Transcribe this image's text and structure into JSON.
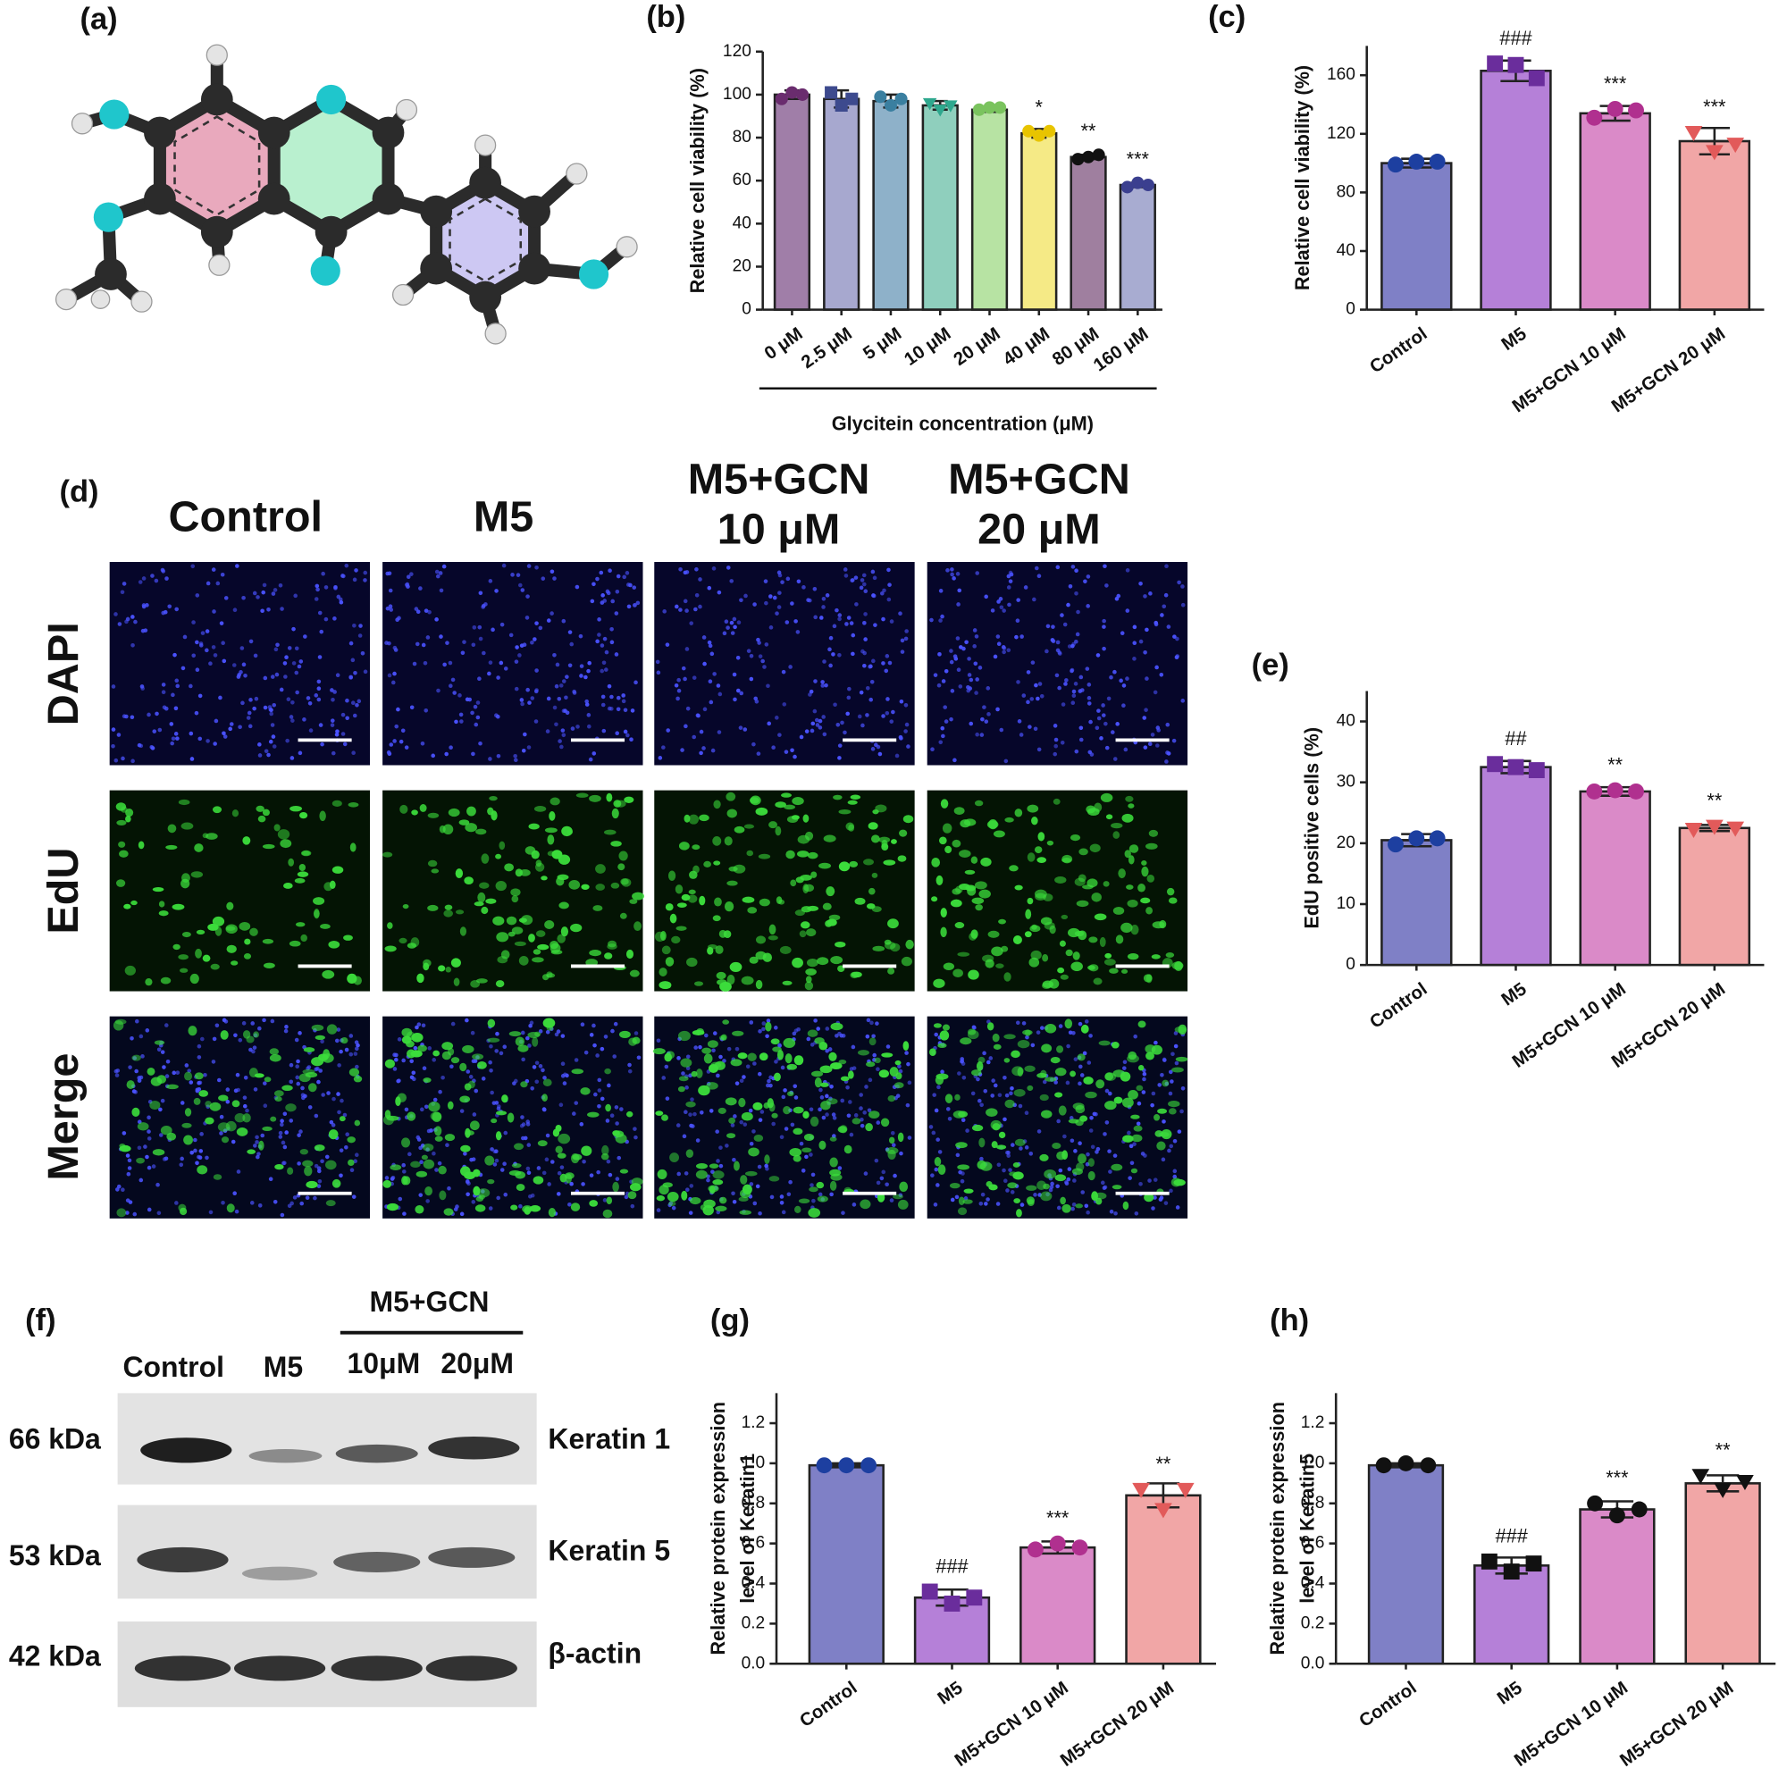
{
  "panel_labels": [
    "(a)",
    "(b)",
    "(c)",
    "(d)",
    "(e)",
    "(f)",
    "(g)",
    "(h)"
  ],
  "chart_data": [
    {
      "type": "bar",
      "ylabel": "Relative cell viability (%)",
      "xlabel": "Glycitein concentration (μM)",
      "categories": [
        "0 μM",
        "2.5 μM",
        "5 μM",
        "10 μM",
        "20 μM",
        "40 μM",
        "80 μM",
        "160 μM"
      ],
      "values": [
        100,
        98,
        97,
        95,
        93,
        82,
        71,
        58
      ],
      "errors": [
        2,
        4,
        3,
        2,
        1,
        2,
        1,
        1
      ],
      "points": [
        [
          98,
          101,
          100
        ],
        [
          101,
          95,
          98
        ],
        [
          99,
          95,
          98
        ],
        [
          96,
          93,
          95
        ],
        [
          93,
          94,
          94
        ],
        [
          83,
          81,
          83
        ],
        [
          70,
          71,
          72
        ],
        [
          57,
          59,
          58
        ]
      ],
      "annotations": [
        null,
        null,
        null,
        null,
        null,
        "*",
        "**",
        "***"
      ],
      "colors": [
        "#a07ea8",
        "#a7a8cf",
        "#8eb1c9",
        "#8fcfbd",
        "#b7e3a3",
        "#f5ea86",
        "#9f7f9f",
        "#a8acd1"
      ],
      "point_colors": [
        "#6a2c6e",
        "#3d4a8e",
        "#3a7fa0",
        "#2ea88e",
        "#7ac35e",
        "#e8c400",
        "#111111",
        "#3b3f8f"
      ],
      "markers": [
        "circle",
        "square",
        "circle",
        "triangle",
        "circle",
        "circle",
        "circle",
        "circle"
      ],
      "ylim": [
        0,
        120
      ],
      "yticks": [
        0,
        20,
        40,
        60,
        80,
        100,
        120
      ]
    },
    {
      "type": "bar",
      "ylabel": "Relative cell viability (%)",
      "categories": [
        "Control",
        "M5",
        "M5+GCN 10 μM",
        "M5+GCN 20 μM"
      ],
      "values": [
        100,
        163,
        134,
        115
      ],
      "errors": [
        3,
        7,
        5,
        9
      ],
      "points": [
        [
          99,
          101,
          101
        ],
        [
          168,
          167,
          158
        ],
        [
          131,
          137,
          136
        ],
        [
          121,
          108,
          113
        ]
      ],
      "annotations": [
        null,
        "###",
        "***",
        "***"
      ],
      "colors": [
        "#7f80c6",
        "#b580d8",
        "#da8ac8",
        "#f1a6a6"
      ],
      "point_colors": [
        "#1d3fa0",
        "#6a2d9c",
        "#b0308f",
        "#e25a5a"
      ],
      "markers": [
        "circle",
        "square",
        "circle",
        "triangle"
      ],
      "ylim": [
        0,
        180
      ],
      "yticks": [
        0,
        40,
        80,
        120,
        160
      ]
    },
    {
      "type": "bar",
      "ylabel": "EdU positive cells (%)",
      "categories": [
        "Control",
        "M5",
        "M5+GCN 10 μM",
        "M5+GCN 20 μM"
      ],
      "values": [
        20.5,
        32.5,
        28.5,
        22.5
      ],
      "errors": [
        1,
        1,
        0.7,
        0.5
      ],
      "points": [
        [
          19.8,
          20.8,
          20.8
        ],
        [
          33,
          32.5,
          32
        ],
        [
          28.5,
          28.7,
          28.5
        ],
        [
          22.3,
          22.8,
          22.5
        ]
      ],
      "annotations": [
        null,
        "##",
        "**",
        "**"
      ],
      "colors": [
        "#7f80c6",
        "#b580d8",
        "#da8ac8",
        "#f1a6a6"
      ],
      "point_colors": [
        "#1d3fa0",
        "#6a2d9c",
        "#b0308f",
        "#e25a5a"
      ],
      "markers": [
        "circle",
        "square",
        "circle",
        "triangle"
      ],
      "ylim": [
        0,
        45
      ],
      "yticks": [
        0,
        10,
        20,
        30,
        40
      ]
    },
    {
      "type": "bar",
      "ylabel_lines": [
        "Relative protein expression",
        "level of Keratin1"
      ],
      "categories": [
        "Control",
        "M5",
        "M5+GCN 10 μM",
        "M5+GCN 20 μM"
      ],
      "values": [
        0.99,
        0.33,
        0.58,
        0.84
      ],
      "errors": [
        0.01,
        0.04,
        0.03,
        0.06
      ],
      "points": [
        [
          0.99,
          0.99,
          0.99
        ],
        [
          0.36,
          0.3,
          0.33
        ],
        [
          0.57,
          0.6,
          0.58
        ],
        [
          0.87,
          0.77,
          0.87
        ]
      ],
      "annotations": [
        null,
        "###",
        "***",
        "**"
      ],
      "colors": [
        "#7f80c6",
        "#b580d8",
        "#da8ac8",
        "#f1a6a6"
      ],
      "point_colors": [
        "#1d3fa0",
        "#6a2d9c",
        "#b0308f",
        "#e25a5a"
      ],
      "markers": [
        "circle",
        "square",
        "circle",
        "triangle"
      ],
      "ylim": [
        0,
        1.35
      ],
      "yticks": [
        {
          "value": 0,
          "label": "0.0"
        },
        0.2,
        0.4,
        0.6,
        0.8,
        {
          "value": 1,
          "label": "1.0"
        },
        1.2
      ]
    },
    {
      "type": "bar",
      "ylabel_lines": [
        "Relative protein expression",
        "level of Keratin5"
      ],
      "categories": [
        "Control",
        "M5",
        "M5+GCN 10 μM",
        "M5+GCN 20 μM"
      ],
      "values": [
        0.99,
        0.49,
        0.77,
        0.9
      ],
      "errors": [
        0.01,
        0.04,
        0.04,
        0.04
      ],
      "points": [
        [
          0.99,
          1.0,
          0.99
        ],
        [
          0.51,
          0.46,
          0.5
        ],
        [
          0.8,
          0.74,
          0.77
        ],
        [
          0.94,
          0.87,
          0.91
        ]
      ],
      "annotations": [
        null,
        "###",
        "***",
        "**"
      ],
      "colors": [
        "#7f80c6",
        "#b580d8",
        "#da8ac8",
        "#f1a6a6"
      ],
      "point_colors": [
        "#111111",
        "#111111",
        "#111111",
        "#111111"
      ],
      "markers": [
        "circle",
        "square",
        "circle",
        "triangle"
      ],
      "ylim": [
        0,
        1.35
      ],
      "yticks": [
        {
          "value": 0,
          "label": "0.0"
        },
        0.2,
        0.4,
        0.6,
        0.8,
        {
          "value": 1,
          "label": "1.0"
        },
        1.2
      ]
    }
  ],
  "microscopy": {
    "columns": [
      [
        "Control"
      ],
      [
        "M5"
      ],
      [
        "M5+GCN",
        "10 μM"
      ],
      [
        "M5+GCN",
        "20 μM"
      ]
    ],
    "rows": [
      "DAPI",
      "EdU",
      "Merge"
    ]
  },
  "western_blot": {
    "group_label": "M5+GCN",
    "lanes": [
      "Control",
      "M5",
      "10μM",
      "20μM"
    ],
    "markers": [
      "66 kDa",
      "53 kDa",
      "42 kDa"
    ],
    "proteins": [
      "Keratin 1",
      "Keratin 5",
      "β-actin"
    ]
  }
}
